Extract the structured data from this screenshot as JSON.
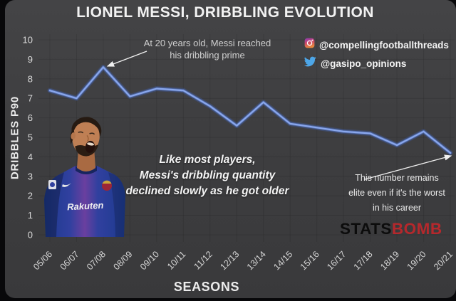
{
  "title": "LIONEL MESSI, DRIBBLING EVOLUTION",
  "x_axis": {
    "label": "SEASONS"
  },
  "y_axis": {
    "label": "DRIBBLES P90",
    "ticks": [
      10,
      9,
      8,
      7,
      6,
      5,
      4,
      3,
      2,
      1,
      0
    ]
  },
  "chart_data": {
    "type": "line",
    "x": [
      "05/06",
      "06/07",
      "07/08",
      "08/09",
      "09/10",
      "10/11",
      "11/12",
      "12/13",
      "13/14",
      "14/15",
      "15/16",
      "16/17",
      "17/18",
      "18/19",
      "19/20",
      "20/21"
    ],
    "values": [
      7.4,
      7.0,
      8.6,
      7.1,
      7.5,
      7.4,
      6.6,
      5.6,
      6.8,
      5.7,
      5.5,
      5.3,
      5.2,
      4.6,
      5.3,
      4.2
    ],
    "title": "LIONEL MESSI, DRIBBLING EVOLUTION",
    "xlabel": "SEASONS",
    "ylabel": "DRIBBLES P90",
    "ylim": [
      0,
      10
    ],
    "grid": true,
    "legend": false,
    "line_color": "#8aa7ec",
    "line_glow_color": "#3f5fae"
  },
  "annotations": {
    "peak": {
      "line1": "At 20 years old, Messi reached",
      "line2": "his dribbling prime"
    },
    "decline": {
      "line1": "Like most players,",
      "line2": "Messi's dribbling quantity",
      "line3": "declined slowly as he got older"
    },
    "worst": {
      "line1": "This number remains",
      "line2": "elite even if it's the worst",
      "line3": "in his career"
    }
  },
  "social": {
    "instagram_handle": "@compellingfootballthreads",
    "twitter_handle": "@gasipo_opinions"
  },
  "branding": {
    "logo_black": "STATS",
    "logo_red": "BOMB"
  },
  "figure": {
    "jersey_sponsor": "Rakuten"
  },
  "colors": {
    "background": "#3e3e40",
    "frame": "#0a0a0a",
    "line_core": "#8aa7ec",
    "line_glow": "#3f5fae",
    "title_text": "#f2f2f2",
    "tick_text": "#d9d9d9",
    "statsbomb_red": "#b5282c",
    "twitter_blue": "#4da6e8"
  }
}
